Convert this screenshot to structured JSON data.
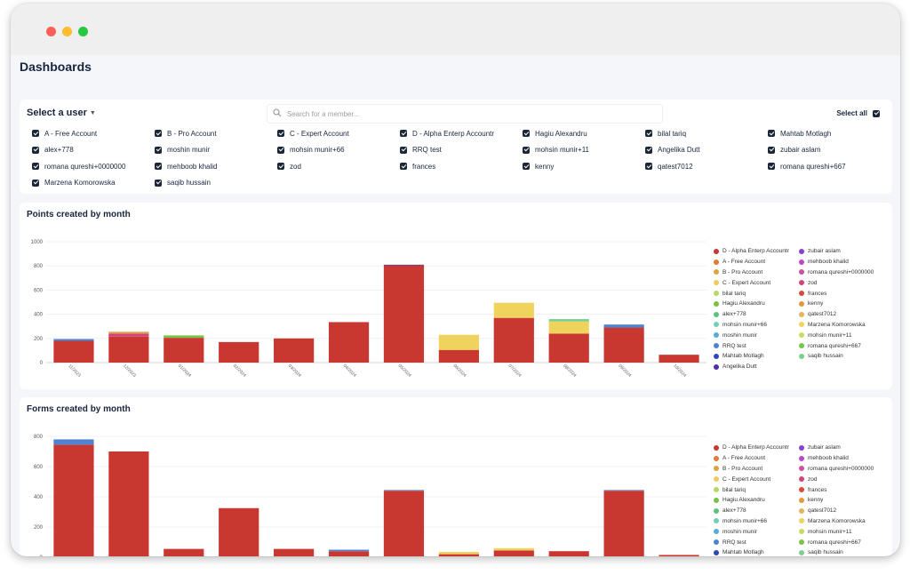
{
  "page_title": "Dashboards",
  "user_picker": {
    "label": "Select a user",
    "search_placeholder": "Search for a member...",
    "select_all_label": "Select all",
    "members": [
      "A - Free Account",
      "B - Pro Account",
      "C - Expert Account",
      "D - Alpha Enterp Accountr",
      "Hagiu Alexandru",
      "bilal tariq",
      "Mahtab Motlagh",
      "alex+778",
      "moshin munir",
      "mohsin munir+66",
      "RRQ test",
      "mohsin munir+11",
      "Angelika Dutt",
      "zubair aslam",
      "romana qureshi+0000000",
      "mehboob khalid",
      "zod",
      "frances",
      "kenny",
      "qatest7012",
      "romana qureshi+667",
      "Marzena Komorowska",
      "saqib hussain"
    ]
  },
  "colors": {
    "D - Alpha Enterp Accountr": "#c93731",
    "A - Free Account": "#e07b39",
    "B - Pro Account": "#d9a441",
    "C - Expert Account": "#eccd5c",
    "bilal tariq": "#b5d86a",
    "Hagiu Alexandru": "#7bc144",
    "alex+778": "#5cc27e",
    "mohsin munir+66": "#72cfb5",
    "moshin munir": "#5aaad6",
    "RRQ test": "#4f82d0",
    "Mahtab Motlagh": "#2e47b8",
    "Angelika Dutt": "#4b30a8",
    "zubair aslam": "#8a3fd0",
    "mehboob khalid": "#b84ac9",
    "romana qureshi+0000000": "#cf4fa2",
    "zod": "#d1457a",
    "frances": "#d94a3b",
    "kenny": "#e29a3a",
    "qatest7012": "#e2b55a",
    "Marzena Komorowska": "#efd35d",
    "mohsin munir+11": "#c8dc5f",
    "romana qureshi+667": "#79c54a",
    "saqib hussain": "#7dcf8f"
  },
  "charts": [
    {
      "title": "Points created by month",
      "legend_left": [
        "D - Alpha Enterp Accountr",
        "A - Free Account",
        "B - Pro Account",
        "C - Expert Account",
        "bilal tariq",
        "Hagiu Alexandru",
        "alex+778",
        "mohsin munir+66",
        "moshin munir",
        "RRQ test",
        "Mahtab Motlagh",
        "Angelika Dutt"
      ],
      "legend_right": [
        "zubair aslam",
        "mehboob khalid",
        "romana qureshi+0000000",
        "zod",
        "frances",
        "kenny",
        "qatest7012",
        "Marzena Komorowska",
        "mohsin munir+11",
        "romana qureshi+667",
        "saqib hussain"
      ],
      "chart_data": {
        "type": "bar",
        "stacked": true,
        "categories": [
          "11/2023",
          "12/2023",
          "01/2024",
          "02/2024",
          "03/2024",
          "04/2024",
          "05/2024",
          "06/2024",
          "07/2024",
          "08/2024",
          "09/2024",
          "10/2024"
        ],
        "ylim": [
          0,
          1000
        ],
        "yticks": [
          0,
          200,
          400,
          600,
          800,
          1000
        ],
        "series": [
          {
            "name": "D - Alpha Enterp Accountr",
            "values": [
              180,
              215,
              205,
              170,
              200,
              335,
              805,
              105,
              370,
              240,
              290,
              65
            ]
          },
          {
            "name": "zod",
            "values": [
              0,
              25,
              0,
              0,
              0,
              0,
              0,
              0,
              0,
              0,
              0,
              0
            ]
          },
          {
            "name": "B - Pro Account",
            "values": [
              0,
              15,
              0,
              0,
              0,
              0,
              0,
              0,
              0,
              0,
              0,
              0
            ]
          },
          {
            "name": "Marzena Komorowska",
            "values": [
              0,
              0,
              0,
              0,
              0,
              0,
              0,
              125,
              125,
              100,
              0,
              0
            ]
          },
          {
            "name": "saqib hussain",
            "values": [
              0,
              0,
              0,
              0,
              0,
              0,
              0,
              0,
              0,
              20,
              0,
              0
            ]
          },
          {
            "name": "Hagiu Alexandru",
            "values": [
              0,
              0,
              20,
              0,
              0,
              0,
              0,
              0,
              0,
              0,
              0,
              0
            ]
          },
          {
            "name": "RRQ test",
            "values": [
              15,
              0,
              0,
              0,
              0,
              0,
              0,
              0,
              0,
              0,
              25,
              0
            ]
          },
          {
            "name": "Mahtab Motlagh",
            "values": [
              0,
              0,
              0,
              0,
              0,
              0,
              5,
              0,
              0,
              0,
              0,
              0
            ]
          }
        ]
      }
    },
    {
      "title": "Forms created by month",
      "legend_left": [
        "D - Alpha Enterp Accountr",
        "A - Free Account",
        "B - Pro Account",
        "C - Expert Account",
        "bilal tariq",
        "Hagiu Alexandru",
        "alex+778",
        "mohsin munir+66",
        "moshin munir",
        "RRQ test",
        "Mahtab Motlagh"
      ],
      "legend_right": [
        "zubair aslam",
        "mehboob khalid",
        "romana qureshi+0000000",
        "zod",
        "frances",
        "kenny",
        "qatest7012",
        "Marzena Komorowska",
        "mohsin munir+11",
        "romana qureshi+667",
        "saqib hussain"
      ],
      "chart_data": {
        "type": "bar",
        "stacked": true,
        "categories": [
          "11/2023",
          "12/2023",
          "01/2024",
          "02/2024",
          "03/2024",
          "04/2024",
          "05/2024",
          "06/2024",
          "07/2024",
          "08/2024",
          "09/2024",
          "10/2024"
        ],
        "ylim": [
          0,
          800
        ],
        "yticks": [
          0,
          200,
          400,
          600,
          800
        ],
        "series": [
          {
            "name": "D - Alpha Enterp Accountr",
            "values": [
              745,
              700,
              55,
              325,
              55,
              40,
              440,
              20,
              45,
              40,
              440,
              15
            ]
          },
          {
            "name": "Marzena Komorowska",
            "values": [
              0,
              0,
              0,
              0,
              0,
              0,
              0,
              15,
              15,
              0,
              0,
              0
            ]
          },
          {
            "name": "RRQ test",
            "values": [
              35,
              0,
              0,
              0,
              0,
              10,
              5,
              0,
              0,
              0,
              5,
              0
            ]
          }
        ]
      }
    }
  ]
}
